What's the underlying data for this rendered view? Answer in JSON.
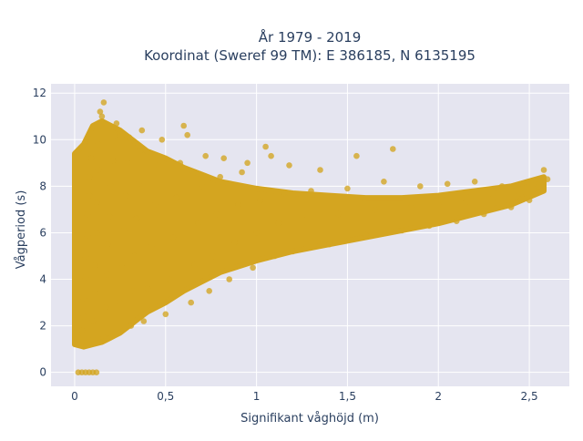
{
  "chart_data": {
    "type": "scatter",
    "title_lines": [
      "År 1979 - 2019",
      "Koordinat (Sweref 99 TM): E 386185, N 6135195"
    ],
    "xlabel": "Signifikant våghöjd (m)",
    "ylabel": "Vågperiod (s)",
    "xlim": [
      -0.13,
      2.72
    ],
    "ylim": [
      -0.6,
      12.4
    ],
    "x_ticks": [
      0,
      0.5,
      1,
      1.5,
      2,
      2.5
    ],
    "x_tick_labels": [
      "0",
      "0,5",
      "1",
      "1,5",
      "2",
      "2,5"
    ],
    "y_ticks": [
      0,
      2,
      4,
      6,
      8,
      10,
      12
    ],
    "y_tick_labels": [
      "0",
      "2",
      "4",
      "6",
      "8",
      "10",
      "12"
    ],
    "grid": true,
    "legend": false,
    "marker_color": "#d4a520",
    "plot_background": "#e5e5f0",
    "series": [
      {
        "points": [
          [
            0.02,
            1.5
          ],
          [
            0.03,
            1.2
          ],
          [
            0.04,
            1.8
          ],
          [
            0.05,
            2.4
          ],
          [
            0.05,
            3.2
          ],
          [
            0.06,
            4.1
          ],
          [
            0.06,
            5.0
          ],
          [
            0.07,
            5.9
          ],
          [
            0.07,
            6.8
          ],
          [
            0.08,
            7.6
          ],
          [
            0.08,
            8.4
          ],
          [
            0.09,
            9.2
          ],
          [
            0.1,
            1.4
          ],
          [
            0.1,
            2.2
          ],
          [
            0.11,
            3.4
          ],
          [
            0.11,
            4.6
          ],
          [
            0.12,
            6.0
          ],
          [
            0.12,
            7.3
          ],
          [
            0.13,
            8.7
          ],
          [
            0.13,
            9.8
          ],
          [
            0.14,
            10.6
          ],
          [
            0.15,
            11.0
          ],
          [
            0.16,
            11.6
          ],
          [
            0.14,
            11.2
          ],
          [
            0.16,
            1.5
          ],
          [
            0.17,
            2.8
          ],
          [
            0.18,
            4.2
          ],
          [
            0.18,
            5.5
          ],
          [
            0.19,
            6.7
          ],
          [
            0.2,
            8.0
          ],
          [
            0.21,
            9.1
          ],
          [
            0.22,
            10.2
          ],
          [
            0.23,
            10.7
          ],
          [
            0.24,
            1.7
          ],
          [
            0.25,
            3.0
          ],
          [
            0.26,
            4.5
          ],
          [
            0.27,
            6.1
          ],
          [
            0.28,
            7.6
          ],
          [
            0.29,
            9.0
          ],
          [
            0.3,
            10.1
          ],
          [
            0.31,
            2.0
          ],
          [
            0.32,
            3.5
          ],
          [
            0.33,
            5.0
          ],
          [
            0.34,
            6.6
          ],
          [
            0.35,
            8.1
          ],
          [
            0.36,
            9.5
          ],
          [
            0.37,
            10.4
          ],
          [
            0.38,
            2.2
          ],
          [
            0.4,
            3.6
          ],
          [
            0.42,
            5.4
          ],
          [
            0.44,
            7.2
          ],
          [
            0.46,
            8.9
          ],
          [
            0.48,
            10.0
          ],
          [
            0.5,
            2.5
          ],
          [
            0.52,
            4.0
          ],
          [
            0.54,
            5.8
          ],
          [
            0.56,
            7.5
          ],
          [
            0.58,
            9.0
          ],
          [
            0.6,
            10.6
          ],
          [
            0.62,
            10.2
          ],
          [
            0.64,
            3.0
          ],
          [
            0.66,
            4.6
          ],
          [
            0.68,
            6.4
          ],
          [
            0.7,
            8.0
          ],
          [
            0.72,
            9.3
          ],
          [
            0.74,
            3.5
          ],
          [
            0.76,
            5.0
          ],
          [
            0.78,
            6.8
          ],
          [
            0.8,
            8.4
          ],
          [
            0.82,
            9.2
          ],
          [
            0.85,
            4.0
          ],
          [
            0.88,
            5.6
          ],
          [
            0.9,
            7.2
          ],
          [
            0.92,
            8.6
          ],
          [
            0.95,
            9.0
          ],
          [
            0.98,
            4.5
          ],
          [
            1.0,
            6.0
          ],
          [
            1.02,
            7.4
          ],
          [
            1.05,
            9.7
          ],
          [
            1.08,
            9.3
          ],
          [
            1.1,
            5.0
          ],
          [
            1.12,
            6.4
          ],
          [
            1.15,
            7.7
          ],
          [
            1.18,
            8.9
          ],
          [
            1.2,
            5.2
          ],
          [
            1.25,
            6.6
          ],
          [
            1.3,
            7.8
          ],
          [
            1.35,
            8.7
          ],
          [
            1.4,
            5.5
          ],
          [
            1.45,
            6.8
          ],
          [
            1.5,
            7.9
          ],
          [
            1.55,
            9.3
          ],
          [
            1.6,
            5.9
          ],
          [
            1.65,
            7.0
          ],
          [
            1.7,
            8.2
          ],
          [
            1.75,
            9.6
          ],
          [
            1.8,
            6.1
          ],
          [
            1.85,
            7.1
          ],
          [
            1.9,
            8.0
          ],
          [
            1.95,
            6.3
          ],
          [
            2.0,
            7.2
          ],
          [
            2.05,
            8.1
          ],
          [
            2.1,
            6.5
          ],
          [
            2.15,
            7.3
          ],
          [
            2.2,
            8.2
          ],
          [
            2.25,
            6.8
          ],
          [
            2.3,
            7.5
          ],
          [
            2.35,
            8.0
          ],
          [
            2.4,
            7.1
          ],
          [
            2.45,
            7.7
          ],
          [
            2.5,
            7.4
          ],
          [
            2.55,
            8.0
          ],
          [
            2.58,
            8.7
          ],
          [
            2.6,
            8.3
          ],
          [
            0.02,
            0.0
          ],
          [
            0.04,
            0.0
          ],
          [
            0.06,
            0.0
          ],
          [
            0.08,
            0.0
          ],
          [
            0.1,
            0.0
          ],
          [
            0.12,
            0.0
          ]
        ]
      }
    ],
    "bands": [
      [
        [
          0.0,
          1.2,
          9.4
        ],
        [
          0.05,
          1.1,
          9.8
        ],
        [
          0.1,
          1.2,
          10.6
        ],
        [
          0.15,
          1.3,
          10.8
        ],
        [
          0.2,
          1.5,
          10.6
        ],
        [
          0.25,
          1.7,
          10.4
        ],
        [
          0.3,
          2.0,
          10.1
        ],
        [
          0.35,
          2.3,
          9.8
        ],
        [
          0.4,
          2.6,
          9.5
        ],
        [
          0.5,
          3.0,
          9.2
        ],
        [
          0.6,
          3.5,
          8.8
        ],
        [
          0.7,
          3.9,
          8.5
        ],
        [
          0.8,
          4.3,
          8.2
        ],
        [
          1.0,
          4.8,
          7.9
        ],
        [
          1.2,
          5.2,
          7.7
        ],
        [
          1.4,
          5.5,
          7.6
        ],
        [
          1.6,
          5.8,
          7.5
        ],
        [
          1.8,
          6.1,
          7.5
        ],
        [
          2.0,
          6.4,
          7.6
        ],
        [
          2.2,
          6.8,
          7.8
        ],
        [
          2.4,
          7.2,
          8.0
        ],
        [
          2.58,
          7.8,
          8.4
        ]
      ]
    ]
  }
}
